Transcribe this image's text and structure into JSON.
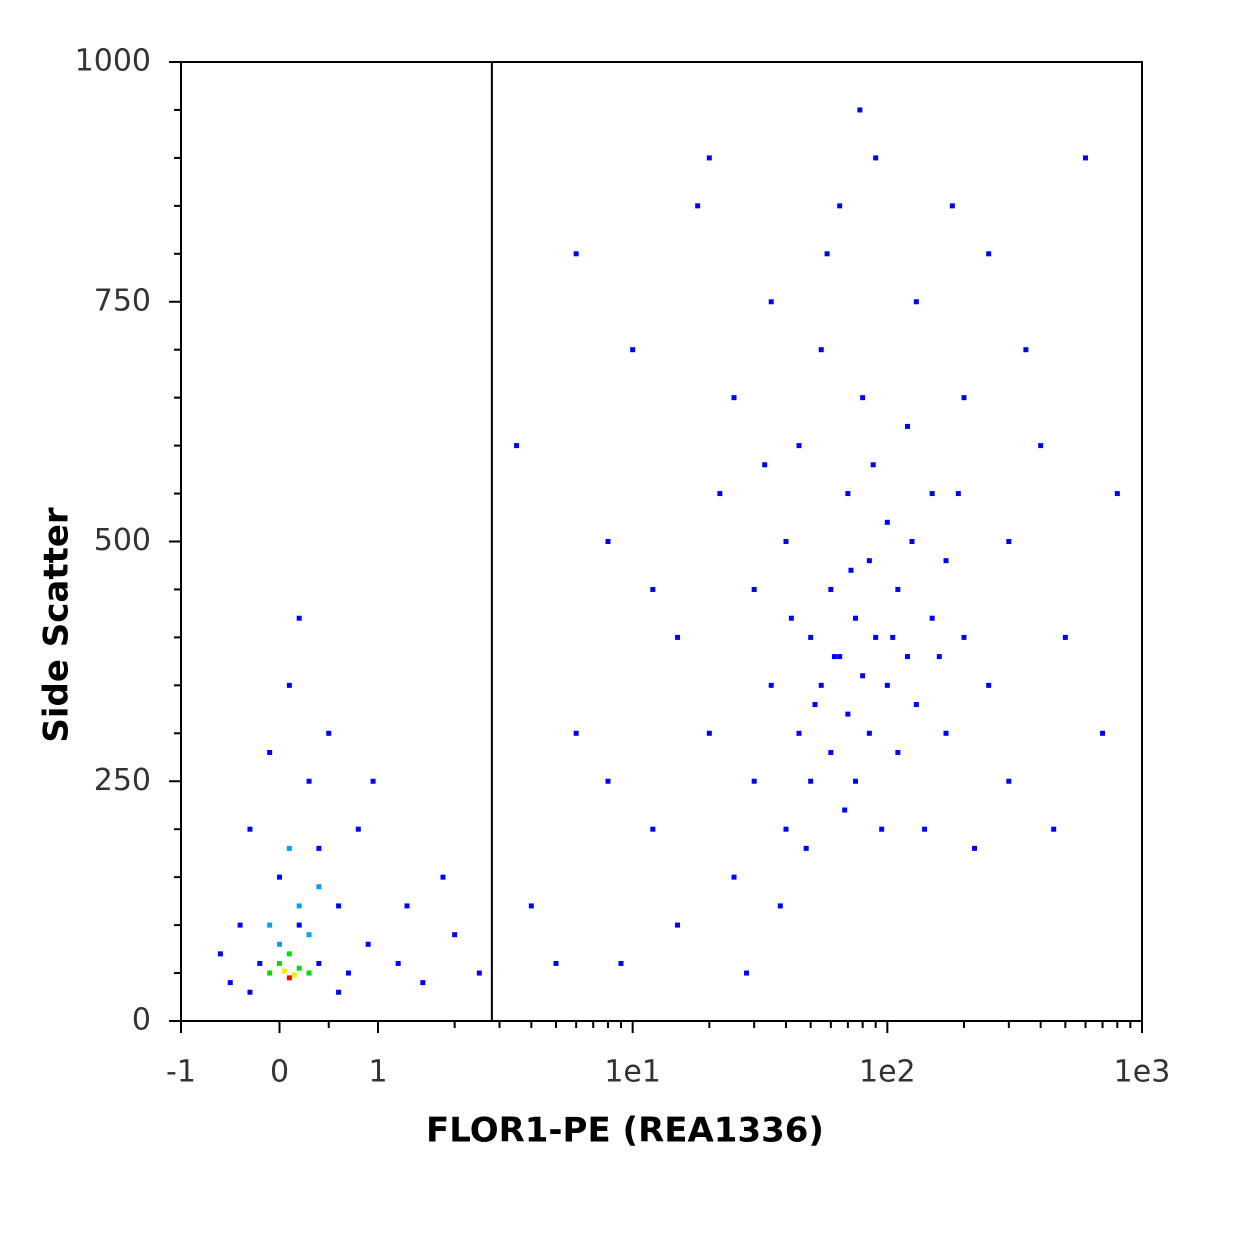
{
  "chart_data": {
    "type": "scatter",
    "xlabel": "FLOR1-PE (REA1336)",
    "ylabel": "Side Scatter",
    "xscale": "biexponential",
    "xlim": [
      -1,
      1000
    ],
    "ylim": [
      0,
      1000
    ],
    "xticks": [
      -1,
      0,
      1,
      {
        "value": 10,
        "label": "1e1"
      },
      {
        "value": 100,
        "label": "1e2"
      },
      {
        "value": 1000,
        "label": "1e3"
      }
    ],
    "xminorticks": [
      0.5,
      2,
      3,
      4,
      5,
      6,
      7,
      8,
      9,
      20,
      30,
      40,
      50,
      60,
      70,
      80,
      90,
      200,
      300,
      400,
      500,
      600,
      700,
      800,
      900
    ],
    "yticks": [
      0,
      250,
      500,
      750,
      1000
    ],
    "yminorticks": [
      50,
      100,
      150,
      200,
      300,
      350,
      400,
      450,
      550,
      600,
      650,
      700,
      800,
      850,
      900,
      950
    ],
    "gate_x": 2.8,
    "series": [
      {
        "color": "#0000ff",
        "x": [
          4,
          5,
          6,
          8,
          10,
          12,
          15,
          18,
          20,
          22,
          25,
          25,
          30,
          30,
          35,
          35,
          40,
          40,
          45,
          45,
          50,
          50,
          55,
          55,
          60,
          60,
          65,
          65,
          70,
          70,
          75,
          75,
          80,
          80,
          85,
          85,
          90,
          90,
          100,
          100,
          110,
          110,
          120,
          120,
          130,
          130,
          150,
          150,
          170,
          170,
          200,
          200,
          250,
          250,
          300,
          300,
          400,
          500,
          600,
          700,
          15,
          20,
          28,
          38,
          48,
          58,
          68,
          78,
          95,
          140,
          180,
          220,
          350,
          450,
          800,
          8,
          12,
          6,
          3.5,
          9,
          33,
          42,
          52,
          62,
          72,
          88,
          105,
          125,
          160,
          190,
          -0.5,
          -0.4,
          -0.3,
          -0.2,
          -0.1,
          0,
          0.1,
          0.2,
          0.3,
          0.4,
          0.5,
          0.6,
          0.7,
          0.8,
          0.9,
          1.2,
          1.5,
          2,
          1.8,
          2.5,
          0.2,
          -0.6,
          0.95,
          1.3,
          0.4,
          -0.3,
          0.6
        ],
        "values": [
          120,
          60,
          300,
          500,
          700,
          200,
          400,
          850,
          300,
          550,
          150,
          650,
          250,
          450,
          350,
          750,
          200,
          500,
          300,
          600,
          250,
          400,
          350,
          700,
          280,
          450,
          380,
          850,
          320,
          550,
          250,
          420,
          360,
          650,
          300,
          480,
          400,
          900,
          350,
          520,
          280,
          450,
          380,
          620,
          330,
          750,
          420,
          550,
          300,
          480,
          400,
          650,
          350,
          800,
          500,
          250,
          600,
          400,
          900,
          300,
          100,
          900,
          50,
          120,
          180,
          800,
          220,
          950,
          200,
          200,
          850,
          180,
          700,
          200,
          550,
          250,
          450,
          800,
          600,
          60,
          580,
          420,
          330,
          380,
          470,
          580,
          400,
          500,
          380,
          550,
          40,
          100,
          200,
          60,
          280,
          150,
          350,
          100,
          250,
          180,
          300,
          120,
          50,
          200,
          80,
          60,
          40,
          90,
          150,
          50,
          420,
          70,
          250,
          120,
          60,
          30,
          30
        ]
      },
      {
        "color": "#00a0ff",
        "x": [
          0,
          0.2,
          0.3,
          -0.1,
          0.1,
          0.4
        ],
        "values": [
          80,
          120,
          90,
          100,
          180,
          140
        ]
      },
      {
        "color": "#00e000",
        "x": [
          0,
          0.2,
          0.1,
          -0.1,
          0.3
        ],
        "values": [
          60,
          55,
          70,
          50,
          50
        ]
      },
      {
        "color": "#f0f000",
        "x": [
          0.05,
          0.15
        ],
        "values": [
          52,
          48
        ]
      },
      {
        "color": "#ff0000",
        "x": [
          0.1
        ],
        "values": [
          45
        ]
      }
    ]
  }
}
